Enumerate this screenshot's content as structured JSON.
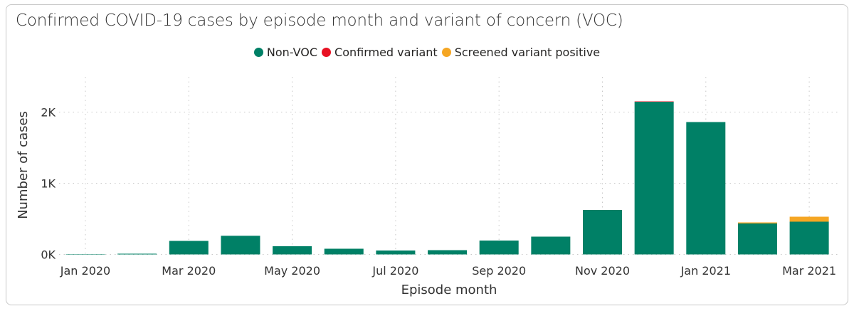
{
  "chart_data": {
    "type": "bar",
    "stacked": true,
    "title": "Confirmed COVID-19 cases by episode month and variant of concern (VOC)",
    "xlabel": "Episode month",
    "ylabel": "Number of cases",
    "ylim": [
      0,
      2400
    ],
    "yticks": [
      {
        "v": 0,
        "label": "0K"
      },
      {
        "v": 1000,
        "label": "1K"
      },
      {
        "v": 2000,
        "label": "2K"
      }
    ],
    "grid": true,
    "legend_position": "top",
    "categories": [
      "Jan 2020",
      "Feb 2020",
      "Mar 2020",
      "Apr 2020",
      "May 2020",
      "Jun 2020",
      "Jul 2020",
      "Aug 2020",
      "Sep 2020",
      "Oct 2020",
      "Nov 2020",
      "Dec 2020",
      "Jan 2021",
      "Feb 2021",
      "Mar 2021"
    ],
    "xtick_labels": [
      {
        "i": 0,
        "label": "Jan 2020"
      },
      {
        "i": 2,
        "label": "Mar 2020"
      },
      {
        "i": 4,
        "label": "May 2020"
      },
      {
        "i": 6,
        "label": "Jul 2020"
      },
      {
        "i": 8,
        "label": "Sep 2020"
      },
      {
        "i": 10,
        "label": "Nov 2020"
      },
      {
        "i": 12,
        "label": "Jan 2021"
      },
      {
        "i": 14,
        "label": "Mar 2021"
      }
    ],
    "series": [
      {
        "name": "Non-VOC",
        "color": "#008066",
        "values": [
          5,
          10,
          190,
          262,
          115,
          80,
          55,
          60,
          195,
          250,
          625,
          2145,
          1860,
          435,
          460
        ]
      },
      {
        "name": "Confirmed variant",
        "color": "#e81123",
        "values": [
          0,
          0,
          0,
          0,
          0,
          0,
          0,
          0,
          0,
          0,
          0,
          5,
          0,
          0,
          0
        ]
      },
      {
        "name": "Screened variant positive",
        "color": "#f5a623",
        "values": [
          0,
          0,
          0,
          0,
          0,
          0,
          0,
          0,
          0,
          0,
          0,
          0,
          0,
          15,
          70
        ]
      }
    ]
  }
}
